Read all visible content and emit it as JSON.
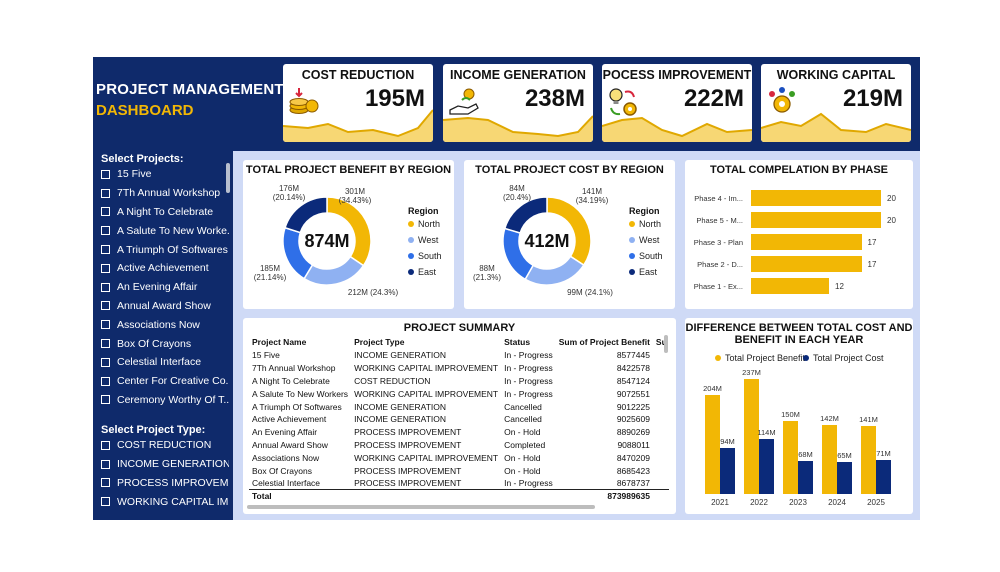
{
  "header": {
    "title_line1": "PROJECT MANAGEMENT",
    "title_line2": "DASHBOARD"
  },
  "kpis": [
    {
      "title": "COST REDUCTION",
      "value": "195M",
      "icon": "coins-icon"
    },
    {
      "title": "INCOME GENERATION",
      "value": "238M",
      "icon": "hand-money-icon"
    },
    {
      "title": "POCESS IMPROVEMENT",
      "value": "222M",
      "icon": "lightbulb-gear-icon"
    },
    {
      "title": "WORKING CAPITAL",
      "value": "219M",
      "icon": "team-gear-icon"
    }
  ],
  "sidebar": {
    "projects_title": "Select Projects:",
    "projects": [
      "15 Five",
      "7Th Annual Workshop",
      "A Night To Celebrate",
      "A Salute To New Worke...",
      "A Triumph Of Softwares",
      "Active Achievement",
      "An Evening Affair",
      "Annual Award Show",
      "Associations Now",
      "Box Of Crayons",
      "Celestial Interface",
      "Center For Creative Co...",
      "Ceremony Worthy Of T..."
    ],
    "types_title": "Select Project Type:",
    "types": [
      "COST REDUCTION",
      "INCOME GENERATION",
      "PROCESS IMPROVEME...",
      "WORKING CAPITAL IM..."
    ]
  },
  "benefit_region": {
    "title": "TOTAL PROJECT BENEFIT BY REGION",
    "center": "874M",
    "legend_title": "Region",
    "legend": [
      "North",
      "West",
      "South",
      "East"
    ],
    "labels": {
      "north": "301M\n(34.43%)",
      "west": "212M (24.3%)",
      "south": "185M\n(21.14%)",
      "east": "176M\n(20.14%)"
    }
  },
  "cost_region": {
    "title": "TOTAL PROJECT COST BY REGION",
    "center": "412M",
    "legend_title": "Region",
    "legend": [
      "North",
      "West",
      "South",
      "East"
    ],
    "labels": {
      "north": "141M\n(34.19%)",
      "west": "99M (24.1%)",
      "south": "88M\n(21.3%)",
      "east": "84M\n(20.4%)"
    }
  },
  "phase_chart": {
    "title": "TOTAL COMPELATION BY PHASE"
  },
  "summary": {
    "title": "PROJECT SUMMARY",
    "columns": [
      "Project Name",
      "Project Type",
      "Status",
      "Sum of Project Benefit",
      "Su"
    ],
    "rows": [
      [
        "15 Five",
        "INCOME GENERATION",
        "In - Progress",
        "8577445"
      ],
      [
        "7Th Annual Workshop",
        "WORKING CAPITAL IMPROVEMENT",
        "In - Progress",
        "8422578"
      ],
      [
        "A Night To Celebrate",
        "COST REDUCTION",
        "In - Progress",
        "8547124"
      ],
      [
        "A Salute To New Workers",
        "WORKING CAPITAL IMPROVEMENT",
        "In - Progress",
        "9072551"
      ],
      [
        "A Triumph Of Softwares",
        "INCOME GENERATION",
        "Cancelled",
        "9012225"
      ],
      [
        "Active Achievement",
        "INCOME GENERATION",
        "Cancelled",
        "9025609"
      ],
      [
        "An Evening Affair",
        "PROCESS IMPROVEMENT",
        "On - Hold",
        "8890269"
      ],
      [
        "Annual Award Show",
        "PROCESS IMPROVEMENT",
        "Completed",
        "9088011"
      ],
      [
        "Associations Now",
        "WORKING CAPITAL IMPROVEMENT",
        "On - Hold",
        "8470209"
      ],
      [
        "Box Of Crayons",
        "PROCESS IMPROVEMENT",
        "On - Hold",
        "8685423"
      ],
      [
        "Celestial Interface",
        "PROCESS IMPROVEMENT",
        "In - Progress",
        "8678737"
      ]
    ],
    "total_label": "Total",
    "total_value": "873989635"
  },
  "diff_chart": {
    "title_line1": "DIFFERENCE BETWEEN TOTAL COST AND",
    "title_line2": "BENEFIT IN EACH YEAR"
  },
  "colors": {
    "navy": "#0f2a6b",
    "gold": "#f2b705",
    "north": "#f2b705",
    "west": "#8fb1f2",
    "south": "#2f6fe8",
    "east": "#0b2a7a",
    "cost_bar": "#0b2a7a"
  },
  "chart_data": [
    {
      "type": "pie",
      "title": "TOTAL PROJECT BENEFIT BY REGION",
      "legend_title": "Region",
      "categories": [
        "North",
        "West",
        "South",
        "East"
      ],
      "values": [
        301,
        212,
        185,
        176
      ],
      "percent": [
        34.43,
        24.3,
        21.14,
        20.14
      ],
      "center_label": "874M",
      "legend": "right"
    },
    {
      "type": "pie",
      "title": "TOTAL PROJECT COST BY REGION",
      "legend_title": "Region",
      "categories": [
        "North",
        "West",
        "South",
        "East"
      ],
      "values": [
        141,
        99,
        88,
        84
      ],
      "percent": [
        34.19,
        24.1,
        21.3,
        20.4
      ],
      "center_label": "412M",
      "legend": "right"
    },
    {
      "type": "bar",
      "orientation": "horizontal",
      "title": "TOTAL COMPELATION BY PHASE",
      "categories": [
        "Phase 4 - Im...",
        "Phase 5 - M...",
        "Phase 3 - Plan",
        "Phase 2 - D...",
        "Phase 1 - Ex..."
      ],
      "values": [
        20,
        20,
        17,
        17,
        12
      ],
      "xlim": [
        0,
        20
      ]
    },
    {
      "type": "bar",
      "title": "DIFFERENCE BETWEEN TOTAL COST AND BENEFIT IN EACH YEAR",
      "categories": [
        "2021",
        "2022",
        "2023",
        "2024",
        "2025"
      ],
      "series": [
        {
          "name": "Total Project Benefit",
          "values": [
            204,
            237,
            150,
            142,
            141
          ],
          "labels": [
            "204M",
            "237M",
            "150M",
            "142M",
            "141M"
          ]
        },
        {
          "name": "Total Project Cost",
          "values": [
            94,
            114,
            68,
            65,
            71
          ],
          "labels": [
            "94M",
            "114M",
            "68M",
            "65M",
            "71M"
          ]
        }
      ],
      "legend": "top"
    }
  ]
}
